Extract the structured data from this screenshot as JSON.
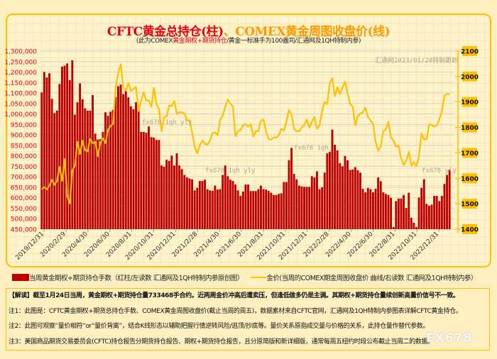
{
  "title": {
    "part1": "CFTC黄金总持仓(柱)",
    "part2": "、COMEX黄金周图收盘价(线)"
  },
  "subtitle": {
    "pre": "(此为COMEX",
    "red": "黄金期权+期货持仓",
    "post": "/黄金一标准手为100盎司/汇通网及1QH特制内参)"
  },
  "watermarks": [
    "汇通网2023/01/28特制更新",
    "fx678 1qh yly",
    "fx678  1qh yly",
    "fx678 1qh",
    "fx678  yly"
  ],
  "legend": {
    "bar": "当周黄金期权+期货持仓手数（红柱/左读数 汇通网及1QH特制内参原创图）",
    "line": "金价(当周的COMEX期金周图收盘价 曲线/右读数 汇通网及1QH特制内参）"
  },
  "notes": [
    "【解读】截至1月24日当周，黄金期权+期货持仓量733468手合约。近两周金价冲高后遭卖压，但逢低做多仍是主调。其期权+期货持仓量续创新高量价信号不一致。",
    "注1：此图是：CFTC黄金期权+期货总持仓手数、COMEX黄金周图收盘价(截止当周的周五)，数据素材来自CFTC官网，汇通网及1QH特制内参图表详解CFTC黄金持仓。",
    "注2：此图可观察“量价相符”or“量价背离”，结合K线形态以辅助把握行情逆转风险/逃顶/抄底等。量价关系原指成交量与价格的关系，此持仓量作替代参数。",
    "注3：美国商品期货交易委员会(CFTC)持仓报告分期货持仓报告、期权+期货持仓报告，且分原简版和新详细版，通常每周五纽约时段公布截止当周二的数据。"
  ],
  "logo": "FX678",
  "chart_data": {
    "type": "bar+line",
    "title": "CFTC黄金总持仓(柱)、COMEX黄金周图收盘价(线)",
    "colors": {
      "bar": "#c00000",
      "line": "#ffc000",
      "left_axis_text": "#e60012",
      "right_axis_bg": "#ffc000"
    },
    "x_tick_labels": [
      "2019/12/31",
      "2020/2/29",
      "2020/4/30",
      "2020/6/30",
      "2020/8/31",
      "2020/10/31",
      "2020/12/31",
      "2021/2/28",
      "2021/4/30",
      "2021/6/30",
      "2021/8/31",
      "2021/10/31",
      "2021/12/31",
      "2022/2/28",
      "2022/4/30",
      "2022/6/30",
      "2022/8/31",
      "2022/10/31",
      "2022/12/31"
    ],
    "left_axis": {
      "ylim": [
        450000,
        1300000
      ],
      "ticks": [
        "450,000",
        "500,000",
        "550,000",
        "600,000",
        "650,000",
        "700,000",
        "750,000",
        "800,000",
        "850,000",
        "900,000",
        "950,000",
        "1,000,000",
        "1,050,000",
        "1,100,000",
        "1,150,000",
        "1,200,000",
        "1,250,000",
        "1,300,000"
      ]
    },
    "right_axis": {
      "ylim": [
        1400,
        2100
      ],
      "ticks": [
        "1400",
        "1500",
        "1600",
        "1700",
        "1800",
        "1900",
        "2000",
        "2100"
      ]
    },
    "grid": true,
    "legend": "bottom",
    "series": [
      {
        "name": "当周黄金期权+期货持仓手数",
        "type": "bar",
        "axis": "left",
        "values": [
          1103000,
          1200000,
          1174000,
          1194000,
          1072000,
          1004000,
          1016000,
          1143000,
          1226000,
          1230000,
          1241000,
          1162000,
          1256000,
          996000,
          1056000,
          1146000,
          1070000,
          1027000,
          1016000,
          1016000,
          1090000,
          906000,
          878000,
          880000,
          914000,
          1008000,
          991000,
          1011000,
          1019000,
          1081000,
          1132000,
          1140000,
          1095000,
          1109000,
          1079000,
          1036000,
          1022000,
          1056000,
          1022000,
          914000,
          914000,
          910000,
          940000,
          889000,
          887000,
          876000,
          876000,
          754000,
          748000,
          781000,
          776000,
          801000,
          754000,
          812000,
          754000,
          737000,
          709000,
          697000,
          692000,
          688000,
          635000,
          647000,
          680000,
          680000,
          686000,
          641000,
          635000,
          633000,
          658000,
          639000,
          641000,
          709000,
          754000,
          703000,
          686000,
          680000,
          663000,
          635000,
          609000,
          630000,
          663000,
          663000,
          632000,
          632000,
          632000,
          641000,
          658000,
          641000,
          639000,
          633000,
          624000,
          613000,
          613000,
          618000,
          621000,
          675000,
          675000,
          779000,
          838000,
          714000,
          688000,
          658000,
          654000,
          652000,
          652000,
          652000,
          703000,
          697000,
          726000,
          641000,
          650000,
          720000,
          812000,
          819000,
          925000,
          853000,
          826000,
          765000,
          750000,
          799000,
          779000,
          733000,
          735000,
          746000,
          731000,
          720000,
          643000,
          626000,
          647000,
          641000,
          626000,
          643000,
          697000,
          679000,
          626000,
          618000,
          613000,
          600000,
          460000,
          584000,
          596000,
          596000,
          613000,
          551000,
          624000,
          505000,
          481000,
          460000,
          601000,
          647000,
          688000,
          571000,
          562000,
          567000,
          609000,
          609000,
          584000,
          609000,
          666000,
          709000,
          733468
        ]
      },
      {
        "name": "金价(当周的COMEX期金周图收盘价)",
        "type": "line",
        "axis": "right",
        "values": [
          1557,
          1565,
          1557,
          1571,
          1594,
          1574,
          1590,
          1645,
          1590,
          1676,
          1529,
          1501,
          1631,
          1650,
          1743,
          1695,
          1748,
          1711,
          1706,
          1754,
          1738,
          1743,
          1687,
          1741,
          1757,
          1738,
          1790,
          1806,
          1813,
          1957,
          2013,
          2048,
          1957,
          1946,
          1975,
          1943,
          1952,
          1959,
          1864,
          1906,
          1938,
          1906,
          1906,
          1882,
          1955,
          1892,
          1873,
          1785,
          1841,
          1843,
          1887,
          1884,
          1903,
          1853,
          1859,
          1859,
          1855,
          1827,
          1829,
          1780,
          1724,
          1698,
          1729,
          1748,
          1736,
          1732,
          1748,
          1778,
          1780,
          1769,
          1831,
          1847,
          1882,
          1909,
          1894,
          1882,
          1766,
          1785,
          1790,
          1808,
          1813,
          1803,
          1813,
          1764,
          1785,
          1785,
          1827,
          1831,
          1785,
          1754,
          1752,
          1760,
          1760,
          1769,
          1794,
          1788,
          1822,
          1868,
          1850,
          1794,
          1785,
          1785,
          1799,
          1810,
          1831,
          1799,
          1822,
          1841,
          1794,
          1808,
          1864,
          1901,
          1892,
          1975,
          1994,
          1922,
          1959,
          1931,
          1957,
          1980,
          1934,
          1892,
          1882,
          1808,
          1845,
          1855,
          1859,
          1878,
          1841,
          1827,
          1813,
          1743,
          1708,
          1726,
          1785,
          1794,
          1822,
          1762,
          1748,
          1724,
          1729,
          1678,
          1652,
          1669,
          1704,
          1650,
          1664,
          1648,
          1687,
          1776,
          1752,
          1754,
          1813,
          1810,
          1803,
          1808,
          1831,
          1864,
          1924,
          1931,
          1931
        ]
      }
    ]
  }
}
